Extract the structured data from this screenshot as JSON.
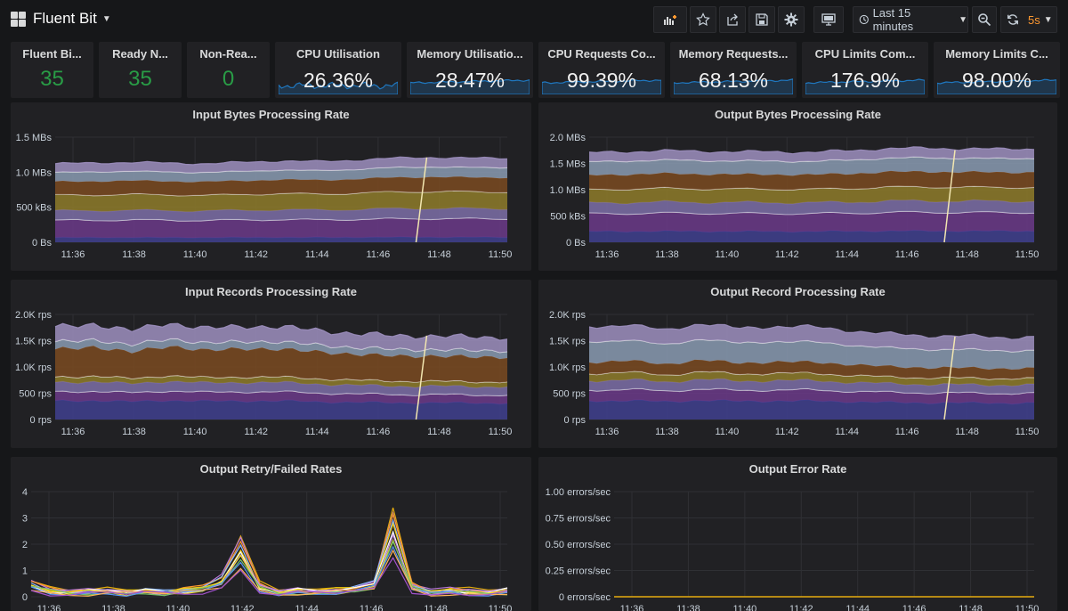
{
  "header": {
    "title": "Fluent Bit",
    "time_range": "Last 15 minutes",
    "refresh": "5s"
  },
  "toolbar": [
    {
      "name": "add-panel-button",
      "icon": "add-panel-icon"
    },
    {
      "name": "star-button",
      "icon": "star-icon"
    },
    {
      "name": "share-button",
      "icon": "share-icon"
    },
    {
      "name": "save-button",
      "icon": "save-icon"
    },
    {
      "name": "settings-button",
      "icon": "gear-icon"
    },
    {
      "name": "tv-mode-button",
      "icon": "monitor-icon"
    }
  ],
  "stats": [
    {
      "title": "Fluent Bi...",
      "value": "35",
      "kind": "number"
    },
    {
      "title": "Ready N...",
      "value": "35",
      "kind": "number"
    },
    {
      "title": "Non-Rea...",
      "value": "0",
      "kind": "number"
    },
    {
      "title": "CPU Utilisation",
      "value": "26.36%",
      "kind": "spark"
    },
    {
      "title": "Memory Utilisatio...",
      "value": "28.47%",
      "kind": "spark"
    },
    {
      "title": "CPU Requests Co...",
      "value": "99.39%",
      "kind": "spark"
    },
    {
      "title": "Memory Requests...",
      "value": "68.13%",
      "kind": "spark"
    },
    {
      "title": "CPU Limits Com...",
      "value": "176.9%",
      "kind": "spark"
    },
    {
      "title": "Memory Limits C...",
      "value": "98.00%",
      "kind": "spark"
    }
  ],
  "x_ticks": [
    "11:36",
    "11:38",
    "11:40",
    "11:42",
    "11:44",
    "11:46",
    "11:48",
    "11:50"
  ],
  "colors": {
    "green": "#299c46",
    "spark_line": "#1f78c1",
    "series": [
      "#3f3f8f",
      "#6b3a8a",
      "#7c6ea8",
      "#8e7b2a",
      "#7a4a21",
      "#8a9bb3",
      "#9d8fbf"
    ]
  },
  "chart_data": [
    {
      "type": "area",
      "title": "Input Bytes Processing Rate",
      "y_ticks": [
        "0 Bs",
        "500 kBs",
        "1.0 MBs",
        "1.5 MBs"
      ],
      "ylim": [
        0,
        1.5
      ],
      "totals": [
        1.12,
        1.13,
        1.14,
        1.13,
        1.12,
        1.14,
        1.16,
        1.15,
        1.17,
        1.2,
        1.21,
        1.2,
        1.2
      ],
      "layer_fractions": [
        0.06,
        0.22,
        0.12,
        0.2,
        0.17,
        0.12,
        0.11
      ]
    },
    {
      "type": "area",
      "title": "Output Bytes Processing Rate",
      "y_ticks": [
        "0 Bs",
        "500 kBs",
        "1.0 MBs",
        "1.5 MBs",
        "2.0 MBs"
      ],
      "ylim": [
        0,
        2.0
      ],
      "totals": [
        1.7,
        1.72,
        1.74,
        1.73,
        1.72,
        1.72,
        1.71,
        1.74,
        1.78,
        1.79,
        1.78,
        1.77,
        1.78
      ],
      "layer_fractions": [
        0.12,
        0.2,
        0.12,
        0.15,
        0.16,
        0.15,
        0.1
      ]
    },
    {
      "type": "area",
      "title": "Input Records Processing Rate",
      "y_ticks": [
        "0 rps",
        "500 rps",
        "1.0K rps",
        "1.5K rps",
        "2.0K rps"
      ],
      "ylim": [
        0,
        2.0
      ],
      "totals": [
        1.75,
        1.82,
        1.68,
        1.84,
        1.72,
        1.78,
        1.75,
        1.7,
        1.62,
        1.6,
        1.58,
        1.57,
        1.56
      ],
      "layer_fractions": [
        0.2,
        0.1,
        0.1,
        0.06,
        0.3,
        0.08,
        0.16
      ]
    },
    {
      "type": "area",
      "title": "Output Record Processing Rate",
      "y_ticks": [
        "0 rps",
        "500 rps",
        "1.0K rps",
        "1.5K rps",
        "2.0K rps"
      ],
      "ylim": [
        0,
        2.0
      ],
      "totals": [
        1.75,
        1.82,
        1.68,
        1.84,
        1.72,
        1.78,
        1.75,
        1.7,
        1.62,
        1.6,
        1.58,
        1.57,
        1.56
      ],
      "layer_fractions": [
        0.2,
        0.12,
        0.1,
        0.08,
        0.12,
        0.22,
        0.16
      ]
    },
    {
      "type": "line",
      "title": "Output Retry/Failed Rates",
      "y_ticks": [
        "0",
        "1",
        "2",
        "3",
        "4"
      ],
      "ylim": [
        0,
        4
      ],
      "series_count": 12,
      "values": [
        0.6,
        0.3,
        0.2,
        0.25,
        0.3,
        0.2,
        0.3,
        0.2,
        0.3,
        0.4,
        0.8,
        2.3,
        0.5,
        0.2,
        0.3,
        0.25,
        0.3,
        0.4,
        0.6,
        3.4,
        0.5,
        0.2,
        0.3,
        0.25,
        0.2,
        0.3
      ]
    },
    {
      "type": "line",
      "title": "Output Error Rate",
      "y_ticks": [
        "0 errors/sec",
        "0.25 errors/sec",
        "0.50 errors/sec",
        "0.75 errors/sec",
        "1.00 errors/sec"
      ],
      "ylim": [
        0,
        1
      ],
      "values": [
        0,
        0
      ]
    }
  ]
}
